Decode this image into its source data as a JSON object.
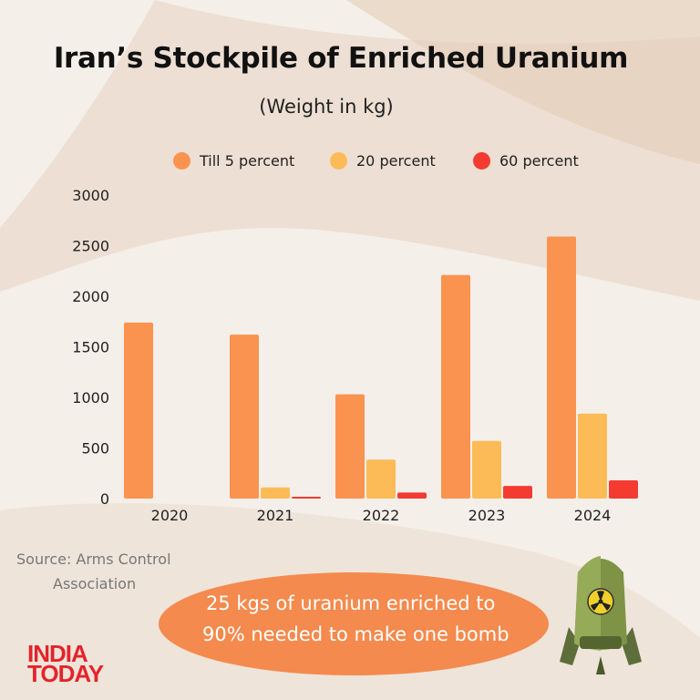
{
  "chart_data": {
    "type": "bar",
    "title": "Iran’s Stockpile of Enriched Uranium",
    "subtitle": "(Weight in kg)",
    "categories": [
      "2020",
      "2021",
      "2022",
      "2023",
      "2024"
    ],
    "series": [
      {
        "name": "Till 5 percent",
        "color": "#fa9350",
        "values": [
          1740,
          1620,
          1030,
          2210,
          2590
        ]
      },
      {
        "name": "20 percent",
        "color": "#fdbb58",
        "values": [
          0,
          110,
          385,
          570,
          840
        ]
      },
      {
        "name": "60 percent",
        "color": "#f33b32",
        "values": [
          0,
          18,
          60,
          125,
          180
        ]
      }
    ],
    "yticks": [
      "0",
      "500",
      "1000",
      "1500",
      "2000",
      "2500",
      "3000"
    ],
    "ylim": [
      0,
      3000
    ],
    "grid": false,
    "legend": "top"
  },
  "source": {
    "line1": "Source: Arms Control",
    "line2": "Association"
  },
  "callout": {
    "line1": "25 kgs of uranium enriched to",
    "line2": "90% needed to make one bomb"
  },
  "brand": {
    "line1": "INDIA",
    "line2": "TODAY",
    "color": "#e3242b"
  },
  "icons": {
    "bomb": "nuclear-bomb-icon"
  }
}
